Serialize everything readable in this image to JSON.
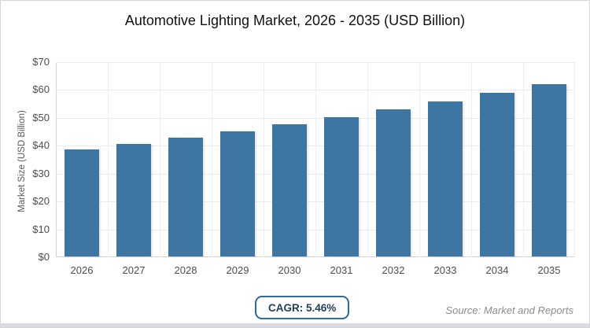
{
  "title": "Automotive Lighting Market, 2026 - 2035 (USD Billion)",
  "chart_data": {
    "type": "bar",
    "title": "Automotive Lighting Market, 2026 - 2035 (USD Billion)",
    "categories": [
      "2026",
      "2027",
      "2028",
      "2029",
      "2030",
      "2031",
      "2032",
      "2033",
      "2034",
      "2035"
    ],
    "values": [
      38.3,
      40.4,
      42.6,
      44.9,
      47.4,
      49.9,
      52.7,
      55.5,
      58.6,
      61.8
    ],
    "xlabel": "",
    "ylabel": "Market Size (USD Billion)",
    "ylim": [
      0,
      70
    ],
    "ytick_step": 10,
    "ytick_labels": [
      "$0",
      "$10",
      "$20",
      "$30",
      "$40",
      "$50",
      "$60",
      "$70"
    ],
    "grid": true,
    "legend": "none",
    "bar_color": "#3d76a2"
  },
  "footer": {
    "cagr_label": "CAGR: 5.46%",
    "source": "Source: Market and Reports"
  },
  "colors": {
    "bar": "#3d76a2",
    "badge_border": "#2e6b9b",
    "badge_text": "#223f5a",
    "gridline": "#ebebeb",
    "axis_line": "#d2d2d2",
    "tick_text": "#4d4d4d",
    "source_text": "#8c8c8c",
    "card_border": "#d6d6d6",
    "bottom_strip": "#dbdbe3"
  }
}
